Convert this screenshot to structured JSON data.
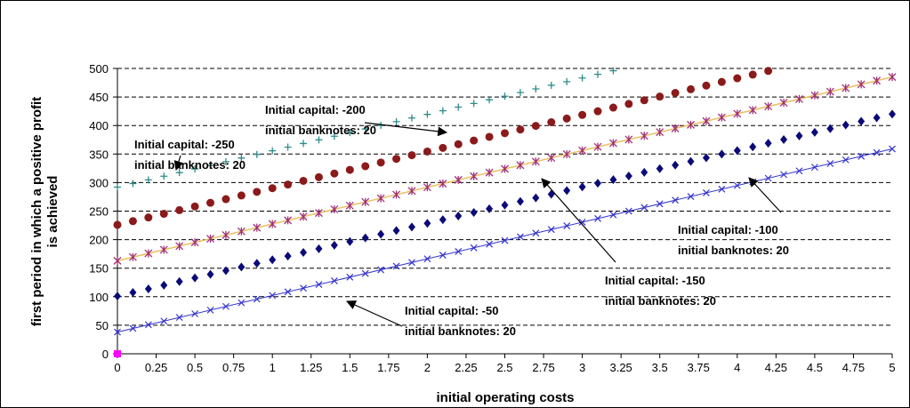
{
  "chart_data": {
    "type": "scatter",
    "title": "",
    "xlabel": "initial operating costs",
    "ylabel": [
      "first period in which a positive profit",
      "is achieved"
    ],
    "xlim": [
      0,
      5
    ],
    "ylim": [
      0,
      500
    ],
    "x_ticks": [
      "0",
      "0.25",
      "0.5",
      "0.75",
      "1",
      "1.25",
      "1.5",
      "1.75",
      "2",
      "2.25",
      "2.5",
      "2.75",
      "3",
      "3.25",
      "3.5",
      "3.75",
      "4",
      "4.25",
      "4.5",
      "4.75",
      "5"
    ],
    "y_ticks": [
      "0",
      "50",
      "100",
      "150",
      "200",
      "250",
      "300",
      "350",
      "400",
      "450",
      "500"
    ],
    "grid": "horizontal dashed",
    "legend": "none",
    "colors": {
      "teal_plus": "#2e8b8b",
      "dark_red_circle": "#8b1a1a",
      "purple_star": "#a0307a",
      "trend_line": "#e8c060",
      "navy_diamond": "#0a0a78",
      "blue_x": "#3333cc",
      "origin_marker": "#ff00ff"
    },
    "series": [
      {
        "marker": "plus",
        "color": "#2e8b8b",
        "x_start": 0,
        "x_step": 0.1,
        "y_start": 292,
        "slope": 63.75,
        "x_end": 3.3
      },
      {
        "marker": "circle",
        "color": "#8b1a1a",
        "x_start": 0,
        "x_step": 0.1,
        "y_start": 226,
        "slope": 64.2,
        "x_end": 4.2
      },
      {
        "marker": "star",
        "color": "#a0307a",
        "x_start": 0,
        "x_step": 0.1,
        "y_start": 163,
        "slope": 64.4,
        "x_end": 5
      },
      {
        "marker": "diamond",
        "color": "#0a0a78",
        "x_start": 0,
        "x_step": 0.1,
        "y_start": 101,
        "slope": 63.8,
        "x_end": 5
      },
      {
        "marker": "x",
        "color": "#3333cc",
        "x_start": 0,
        "x_step": 0.1,
        "y_start": 38,
        "slope": 64.2,
        "x_end": 5
      }
    ],
    "trend_line": {
      "color": "#e8c060",
      "y_start": 163,
      "slope": 64.4
    },
    "origin_point": {
      "x": 0,
      "y": 0,
      "color": "#ff00ff"
    },
    "annotations": [
      {
        "line1": "Initial capital: -200",
        "line2": "initial banknotes: 20"
      },
      {
        "line1": "Initial capital: -250",
        "line2": "initial banknotes: 20"
      },
      {
        "line1": "Initial capital: -100",
        "line2": "initial banknotes: 20"
      },
      {
        "line1": "Initial capital: -150",
        "line2": "initial banknotes: 20"
      },
      {
        "line1": "Initial capital: -50",
        "line2": "initial banknotes: 20"
      }
    ]
  }
}
